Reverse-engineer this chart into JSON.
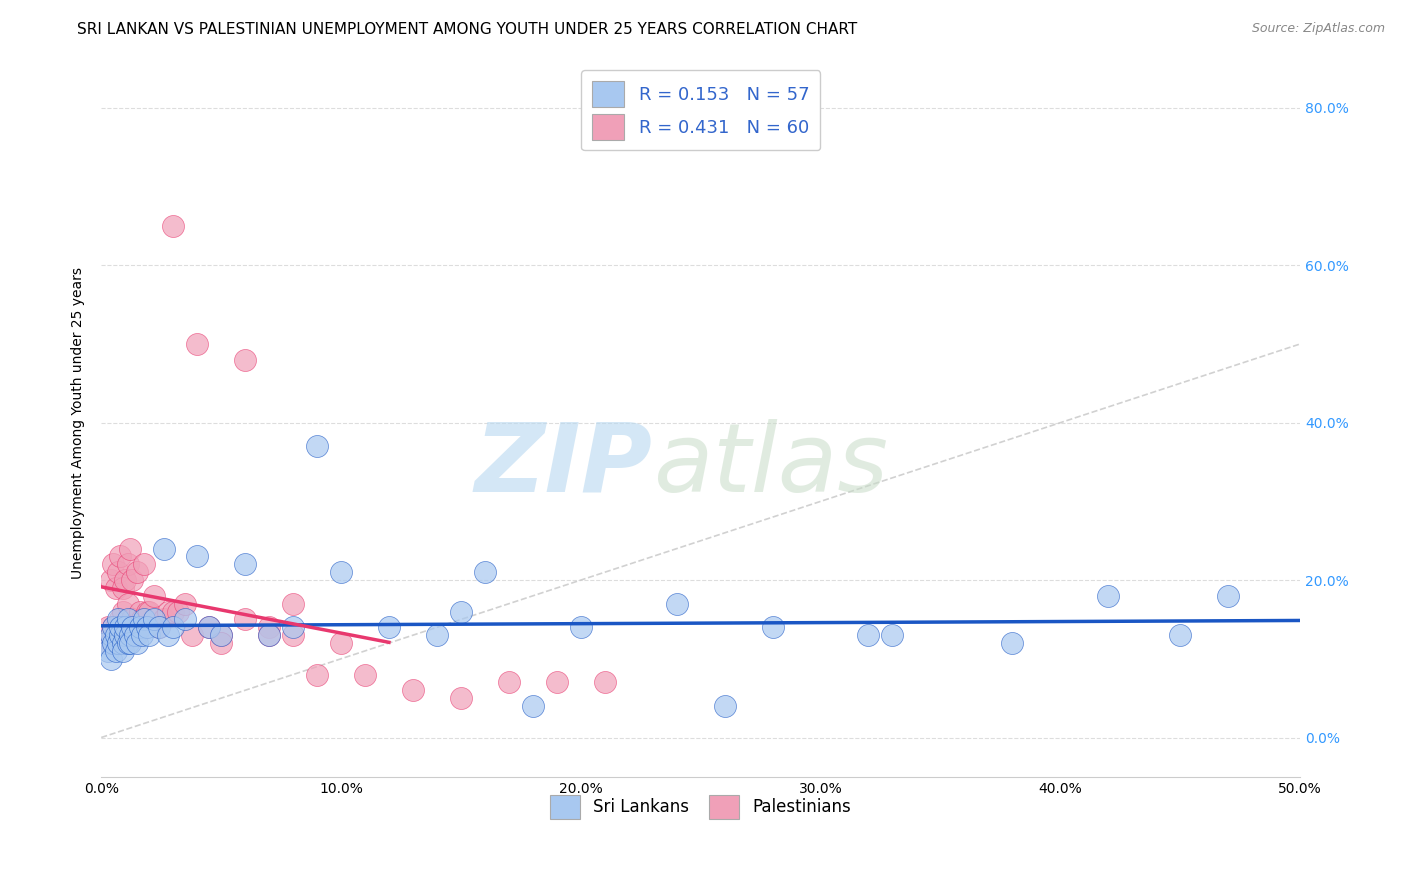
{
  "title": "SRI LANKAN VS PALESTINIAN UNEMPLOYMENT AMONG YOUTH UNDER 25 YEARS CORRELATION CHART",
  "source": "Source: ZipAtlas.com",
  "ylabel": "Unemployment Among Youth under 25 years",
  "xlim": [
    0.0,
    0.5
  ],
  "ylim": [
    -0.05,
    0.85
  ],
  "sri_lankans_color": "#a8c8f0",
  "palestinians_color": "#f0a0b8",
  "trendline_sri_color": "#1a56c4",
  "trendline_pal_color": "#e8386e",
  "diagonal_color": "#cccccc",
  "background_color": "#ffffff",
  "grid_color": "#dddddd",
  "title_fontsize": 11,
  "axis_label_fontsize": 10,
  "tick_fontsize": 10,
  "sri_lankans_x": [
    0.002,
    0.003,
    0.004,
    0.004,
    0.005,
    0.005,
    0.006,
    0.006,
    0.007,
    0.007,
    0.008,
    0.008,
    0.009,
    0.009,
    0.01,
    0.01,
    0.011,
    0.011,
    0.012,
    0.012,
    0.013,
    0.014,
    0.015,
    0.016,
    0.017,
    0.018,
    0.019,
    0.02,
    0.022,
    0.024,
    0.026,
    0.028,
    0.03,
    0.035,
    0.04,
    0.045,
    0.05,
    0.06,
    0.07,
    0.08,
    0.09,
    0.1,
    0.12,
    0.14,
    0.16,
    0.2,
    0.24,
    0.28,
    0.33,
    0.38,
    0.42,
    0.45,
    0.47,
    0.32,
    0.26,
    0.18,
    0.15
  ],
  "sri_lankans_y": [
    0.12,
    0.11,
    0.13,
    0.1,
    0.12,
    0.14,
    0.13,
    0.11,
    0.12,
    0.15,
    0.13,
    0.14,
    0.12,
    0.11,
    0.13,
    0.14,
    0.12,
    0.15,
    0.13,
    0.12,
    0.14,
    0.13,
    0.12,
    0.14,
    0.13,
    0.15,
    0.14,
    0.13,
    0.15,
    0.14,
    0.24,
    0.13,
    0.14,
    0.15,
    0.23,
    0.14,
    0.13,
    0.22,
    0.13,
    0.14,
    0.37,
    0.21,
    0.14,
    0.13,
    0.21,
    0.14,
    0.17,
    0.14,
    0.13,
    0.12,
    0.18,
    0.13,
    0.18,
    0.13,
    0.04,
    0.04,
    0.16
  ],
  "palestinians_x": [
    0.002,
    0.003,
    0.003,
    0.004,
    0.004,
    0.005,
    0.005,
    0.005,
    0.006,
    0.006,
    0.007,
    0.007,
    0.007,
    0.008,
    0.008,
    0.009,
    0.009,
    0.01,
    0.01,
    0.011,
    0.011,
    0.012,
    0.012,
    0.013,
    0.013,
    0.014,
    0.015,
    0.015,
    0.016,
    0.017,
    0.018,
    0.019,
    0.02,
    0.022,
    0.024,
    0.026,
    0.028,
    0.03,
    0.032,
    0.035,
    0.038,
    0.04,
    0.045,
    0.05,
    0.06,
    0.07,
    0.08,
    0.09,
    0.1,
    0.11,
    0.13,
    0.15,
    0.17,
    0.19,
    0.21,
    0.06,
    0.07,
    0.03,
    0.05,
    0.08
  ],
  "palestinians_y": [
    0.13,
    0.12,
    0.14,
    0.12,
    0.2,
    0.12,
    0.14,
    0.22,
    0.14,
    0.19,
    0.13,
    0.21,
    0.14,
    0.15,
    0.23,
    0.16,
    0.19,
    0.14,
    0.2,
    0.17,
    0.22,
    0.14,
    0.24,
    0.15,
    0.2,
    0.14,
    0.13,
    0.21,
    0.16,
    0.15,
    0.22,
    0.16,
    0.16,
    0.18,
    0.14,
    0.15,
    0.16,
    0.16,
    0.16,
    0.17,
    0.13,
    0.5,
    0.14,
    0.13,
    0.15,
    0.14,
    0.13,
    0.08,
    0.12,
    0.08,
    0.06,
    0.05,
    0.07,
    0.07,
    0.07,
    0.48,
    0.13,
    0.65,
    0.12,
    0.17
  ]
}
